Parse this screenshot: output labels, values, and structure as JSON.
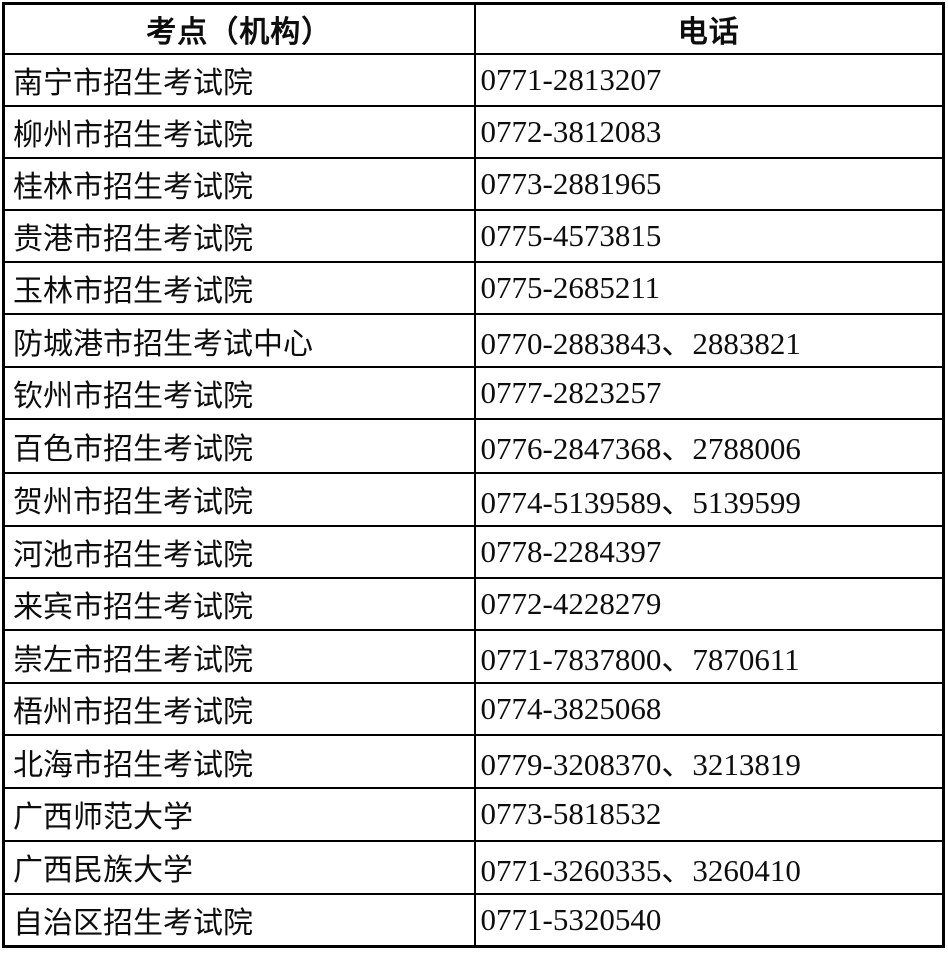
{
  "page": {
    "background_color": "#ffffff",
    "border_color": "#000000",
    "text_color": "#0d0d0d"
  },
  "table": {
    "headers": [
      {
        "label": "考点（机构）"
      },
      {
        "label": "电话"
      }
    ],
    "rows": [
      {
        "site": "南宁市招生考试院",
        "phone": "0771-2813207"
      },
      {
        "site": "柳州市招生考试院",
        "phone": "0772-3812083"
      },
      {
        "site": "桂林市招生考试院",
        "phone": "0773-2881965"
      },
      {
        "site": "贵港市招生考试院",
        "phone": "0775-4573815"
      },
      {
        "site": "玉林市招生考试院",
        "phone": "0775-2685211"
      },
      {
        "site": "防城港市招生考试中心",
        "phone": "0770-2883843、2883821"
      },
      {
        "site": "钦州市招生考试院",
        "phone": "0777-2823257"
      },
      {
        "site": "百色市招生考试院",
        "phone": "0776-2847368、2788006"
      },
      {
        "site": "贺州市招生考试院",
        "phone": "0774-5139589、5139599"
      },
      {
        "site": "河池市招生考试院",
        "phone": "0778-2284397"
      },
      {
        "site": "来宾市招生考试院",
        "phone": "0772-4228279"
      },
      {
        "site": "崇左市招生考试院",
        "phone": "0771-7837800、7870611"
      },
      {
        "site": "梧州市招生考试院",
        "phone": "0774-3825068"
      },
      {
        "site": "北海市招生考试院",
        "phone": "0779-3208370、3213819"
      },
      {
        "site": "广西师范大学",
        "phone": "0773-5818532"
      },
      {
        "site": "广西民族大学",
        "phone": "0771-3260335、3260410"
      },
      {
        "site": "自治区招生考试院",
        "phone": "0771-5320540"
      }
    ]
  }
}
